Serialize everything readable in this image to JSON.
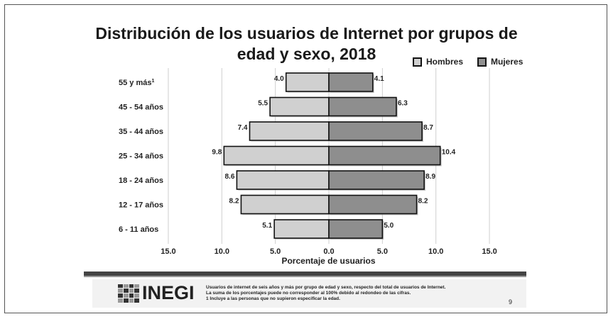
{
  "chart_data": {
    "type": "bar",
    "orientation": "horizontal",
    "title_line1": "Distribución de los usuarios de Internet por grupos de",
    "title_line2": "edad y sexo, 2018",
    "xlabel": "Porcentaje de usuarios",
    "xlim": [
      -15,
      15
    ],
    "x_ticks": [
      "15.0",
      "10.0",
      "5.0",
      "0.0",
      "5.0",
      "10.0",
      "15.0"
    ],
    "categories": [
      "55 y más",
      "45 - 54 años",
      "35 - 44 años",
      "25 - 34 años",
      "18 - 24 años",
      "12 - 17 años",
      "6 - 11 años"
    ],
    "category_superscripts": [
      "1",
      "",
      "",
      "",
      "",
      "",
      ""
    ],
    "series": [
      {
        "name": "Hombres",
        "values": [
          4.0,
          5.5,
          7.4,
          9.8,
          8.6,
          8.2,
          5.1
        ],
        "labels": [
          "4.0",
          "5.5",
          "7.4",
          "9.8",
          "8.6",
          "8.2",
          "5.1"
        ],
        "color": "#d0d0d0"
      },
      {
        "name": "Mujeres",
        "values": [
          4.1,
          6.3,
          8.7,
          10.4,
          8.9,
          8.2,
          5.0
        ],
        "labels": [
          "4.1",
          "6.3",
          "8.7",
          "10.4",
          "8.9",
          "8.2",
          "5.0"
        ],
        "color": "#8e8e8e"
      }
    ],
    "grid": true,
    "legend_position": "top-right"
  },
  "legend": {
    "hombres": "Hombres",
    "mujeres": "Mujeres"
  },
  "footer": {
    "logo_text": "INEGI",
    "note_line1": "Usuarios de internet de seis años y más por grupo de edad y sexo, respecto del total de usuarios de Internet.",
    "note_line2": "La suma de los porcentajes puede no corresponder al 100% debido al redondeo de las cifras.",
    "note_line3": "1 Incluye a las personas que no supieron especificar la edad.",
    "page_number": "9"
  }
}
